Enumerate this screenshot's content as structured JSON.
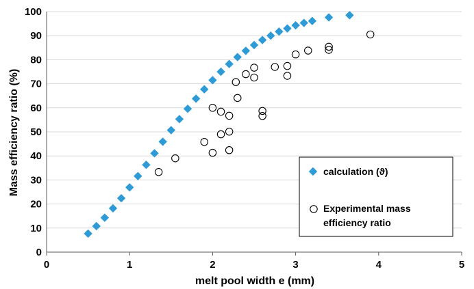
{
  "chart_data": {
    "type": "scatter",
    "xlabel": "melt pool width e (mm)",
    "ylabel": "Mass efficiency ratio (%)",
    "xlim": [
      0,
      5
    ],
    "ylim": [
      0,
      100
    ],
    "x_ticks": [
      "0",
      "1",
      "2",
      "3",
      "4",
      "5"
    ],
    "y_ticks": [
      "0",
      "10",
      "20",
      "30",
      "40",
      "50",
      "60",
      "70",
      "80",
      "90",
      "100"
    ],
    "grid": "horizontal",
    "legend_position": "bottom-right",
    "legend": [
      {
        "label": "calculation (ϑ)",
        "marker": "diamond-filled"
      },
      {
        "label_lines": [
          "Experimental mass",
          "efficiency ratio"
        ],
        "marker": "circle-open"
      }
    ],
    "series": [
      {
        "name": "calculation (ϑ)",
        "color": "#2E9BD6",
        "marker": "diamond",
        "points": [
          [
            0.5,
            7.7
          ],
          [
            0.6,
            10.8
          ],
          [
            0.7,
            14.3
          ],
          [
            0.8,
            18.2
          ],
          [
            0.9,
            22.4
          ],
          [
            1.0,
            26.9
          ],
          [
            1.1,
            31.6
          ],
          [
            1.2,
            36.3
          ],
          [
            1.3,
            41.1
          ],
          [
            1.4,
            45.9
          ],
          [
            1.5,
            50.7
          ],
          [
            1.6,
            55.3
          ],
          [
            1.7,
            59.6
          ],
          [
            1.8,
            63.8
          ],
          [
            1.9,
            67.7
          ],
          [
            2.0,
            71.5
          ],
          [
            2.1,
            75.0
          ],
          [
            2.2,
            78.2
          ],
          [
            2.3,
            81.1
          ],
          [
            2.4,
            83.7
          ],
          [
            2.5,
            86.1
          ],
          [
            2.6,
            88.2
          ],
          [
            2.7,
            90.0
          ],
          [
            2.8,
            91.7
          ],
          [
            2.9,
            93.0
          ],
          [
            3.0,
            94.3
          ],
          [
            3.1,
            95.3
          ],
          [
            3.2,
            96.1
          ],
          [
            3.4,
            97.6
          ],
          [
            3.65,
            98.5
          ]
        ]
      },
      {
        "name": "Experimental mass efficiency ratio",
        "color": "#000000",
        "marker": "circle-open",
        "points": [
          [
            1.35,
            33.3
          ],
          [
            1.55,
            39.0
          ],
          [
            1.9,
            45.8
          ],
          [
            2.0,
            41.3
          ],
          [
            2.0,
            60.0
          ],
          [
            2.1,
            58.4
          ],
          [
            2.1,
            49.0
          ],
          [
            2.2,
            56.7
          ],
          [
            2.2,
            50.1
          ],
          [
            2.2,
            42.4
          ],
          [
            2.28,
            70.7
          ],
          [
            2.3,
            64.1
          ],
          [
            2.4,
            74.0
          ],
          [
            2.5,
            76.7
          ],
          [
            2.5,
            72.6
          ],
          [
            2.6,
            58.7
          ],
          [
            2.6,
            56.6
          ],
          [
            2.75,
            77.0
          ],
          [
            2.9,
            77.4
          ],
          [
            2.9,
            73.3
          ],
          [
            3.0,
            82.2
          ],
          [
            3.15,
            83.8
          ],
          [
            3.4,
            85.4
          ],
          [
            3.4,
            84.1
          ],
          [
            3.9,
            90.5
          ]
        ]
      }
    ]
  }
}
